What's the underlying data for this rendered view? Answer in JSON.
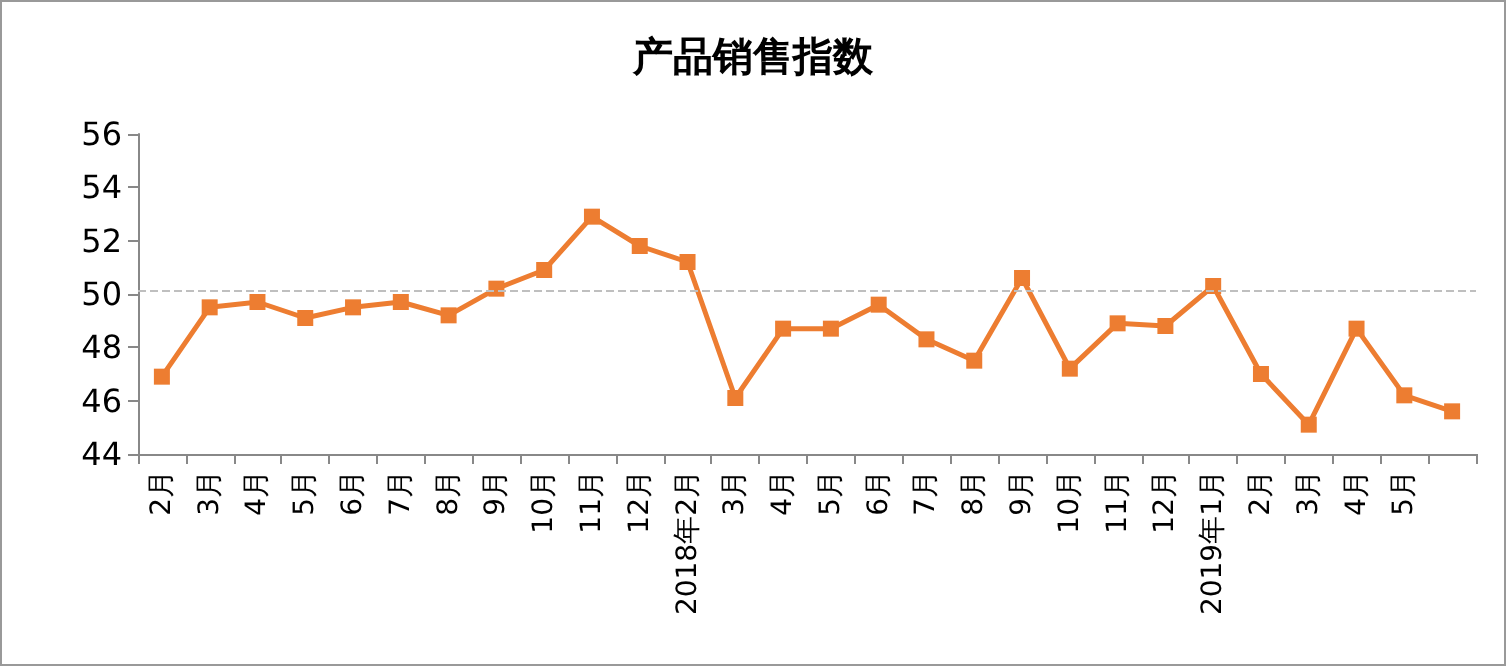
{
  "chart_data": {
    "type": "line",
    "title": "产品销售指数",
    "categories": [
      "2月",
      "3月",
      "4月",
      "5月",
      "6月",
      "7月",
      "8月",
      "9月",
      "10月",
      "11月",
      "12月",
      "2018年2月",
      "3月",
      "4月",
      "5月",
      "6月",
      "7月",
      "8月",
      "9月",
      "10月",
      "11月",
      "12月",
      "2019年1月",
      "2月",
      "3月",
      "4月",
      "5月",
      null
    ],
    "series": [
      {
        "color": "#ed7d31",
        "values": [
          46.9,
          49.5,
          49.7,
          49.1,
          49.5,
          49.7,
          49.2,
          50.2,
          50.9,
          52.9,
          51.8,
          51.2,
          46.1,
          48.7,
          48.7,
          49.6,
          48.3,
          47.5,
          50.6,
          47.2,
          48.9,
          48.8,
          50.3,
          47.0,
          45.1,
          48.7,
          46.2,
          45.6
        ]
      }
    ],
    "ylim": [
      44,
      56
    ],
    "yticks": [
      44,
      46,
      48,
      50,
      52,
      54,
      56
    ],
    "ref_lines": [
      {
        "axis": "y",
        "value": 50.1,
        "color": "#bfbfbf",
        "line_style": "dashed"
      }
    ],
    "grid": false,
    "marker": "square",
    "line_style": "solid"
  }
}
